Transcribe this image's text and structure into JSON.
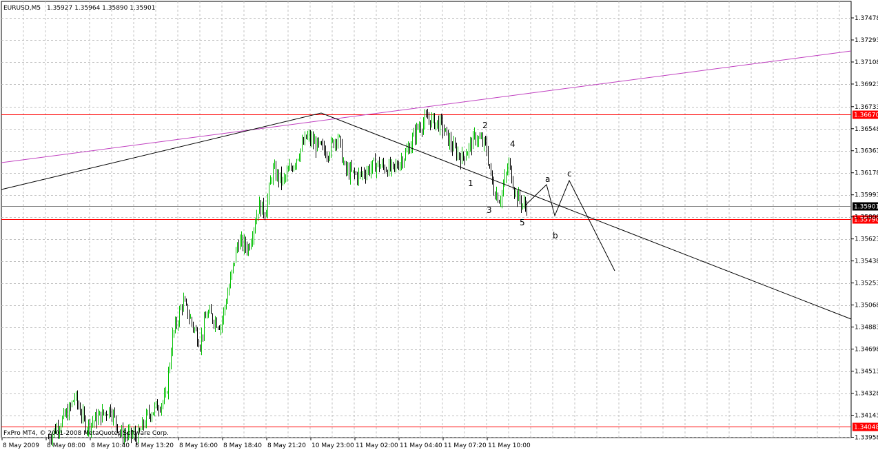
{
  "header": {
    "symbol": "EURUSD,M5",
    "ohlc": "1.35927 1.35964 1.35890 1.35901"
  },
  "copyright": "FxPro MT4, © 2001-2008 MetaQuotes Software Corp.",
  "colors": {
    "background": "#ffffff",
    "grid": "#c0c0c0",
    "candle_up": "#00c000",
    "candle_down": "#000000",
    "horizontal_level": "#ff0000",
    "channel_line": "#c040c0",
    "trend_line": "#000000",
    "current_price": "#000000"
  },
  "chart_data": {
    "type": "candlestick",
    "y_axis_ticks": [
      "1.37478",
      "1.37293",
      "1.37108",
      "1.36923",
      "1.36733",
      "1.36548",
      "1.36363",
      "1.36178",
      "1.35993",
      "1.35808",
      "1.35623",
      "1.35438",
      "1.35253",
      "1.35068",
      "1.34883",
      "1.34698",
      "1.34513",
      "1.34328",
      "1.34143",
      "1.33958"
    ],
    "ylim": [
      1.3389,
      1.3758
    ],
    "x_axis_ticks": [
      "8 May 2009",
      "8 May 08:00",
      "8 May 10:40",
      "8 May 13:20",
      "8 May 16:00",
      "8 May 18:40",
      "8 May 21:20",
      "10 May 23:00",
      "11 May 02:00",
      "11 May 04:40",
      "11 May 07:20",
      "11 May 10:00"
    ],
    "levels": [
      {
        "price": 1.3667,
        "label": "1.36670",
        "color": "#ff0000"
      },
      {
        "price": 1.3579,
        "label": "1.35790",
        "color": "#ff0000"
      },
      {
        "price": 1.34048,
        "label": "1.34048",
        "color": "#ff0000"
      }
    ],
    "current_price": {
      "price": 1.35901,
      "label": "1.35901"
    },
    "wave_labels": [
      "1",
      "2",
      "3",
      "4",
      "5",
      "a",
      "b",
      "c"
    ],
    "grid": true
  }
}
